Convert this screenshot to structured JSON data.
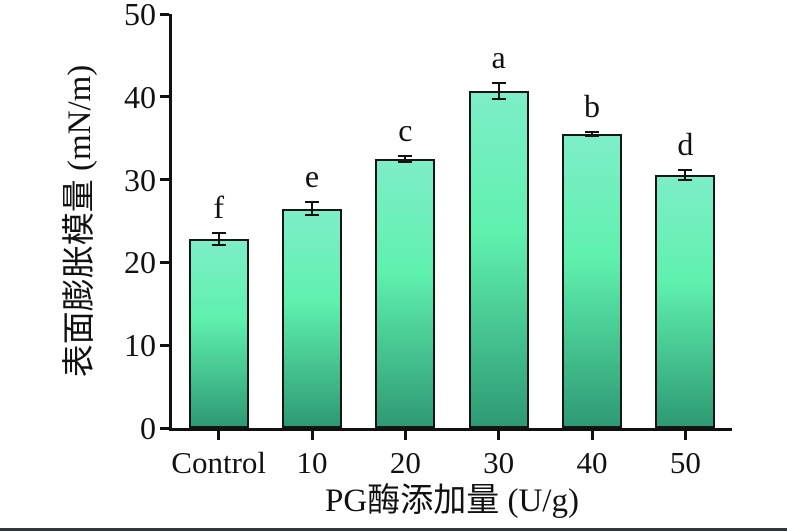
{
  "figure": {
    "background": "#ffffff",
    "bottom_rule_color": "#2f3742",
    "axis_color": "#111111",
    "text_color": "#111111"
  },
  "chart_data": {
    "type": "bar",
    "title": "",
    "xlabel": "PG酶添加量 (U/g)",
    "ylabel": "表面膨胀模量 (mN/m)",
    "categories": [
      "Control",
      "10",
      "20",
      "30",
      "40",
      "50"
    ],
    "values": [
      22.8,
      26.5,
      32.5,
      40.7,
      35.5,
      30.6
    ],
    "errors": [
      0.7,
      0.8,
      0.35,
      1.0,
      0.2,
      0.6
    ],
    "sig_letters": [
      "f",
      "e",
      "c",
      "a",
      "b",
      "d"
    ],
    "ylim": [
      0,
      50
    ],
    "ytick_step": 10,
    "yticks": [
      0,
      10,
      20,
      30,
      40,
      50
    ],
    "grid": false,
    "legend": "none",
    "bar_outline_color": "#151515",
    "bar_gradient_top": "#7deec8",
    "bar_gradient_mid": "#5ff1ae",
    "bar_gradient_bottom": "#2e9a74"
  }
}
